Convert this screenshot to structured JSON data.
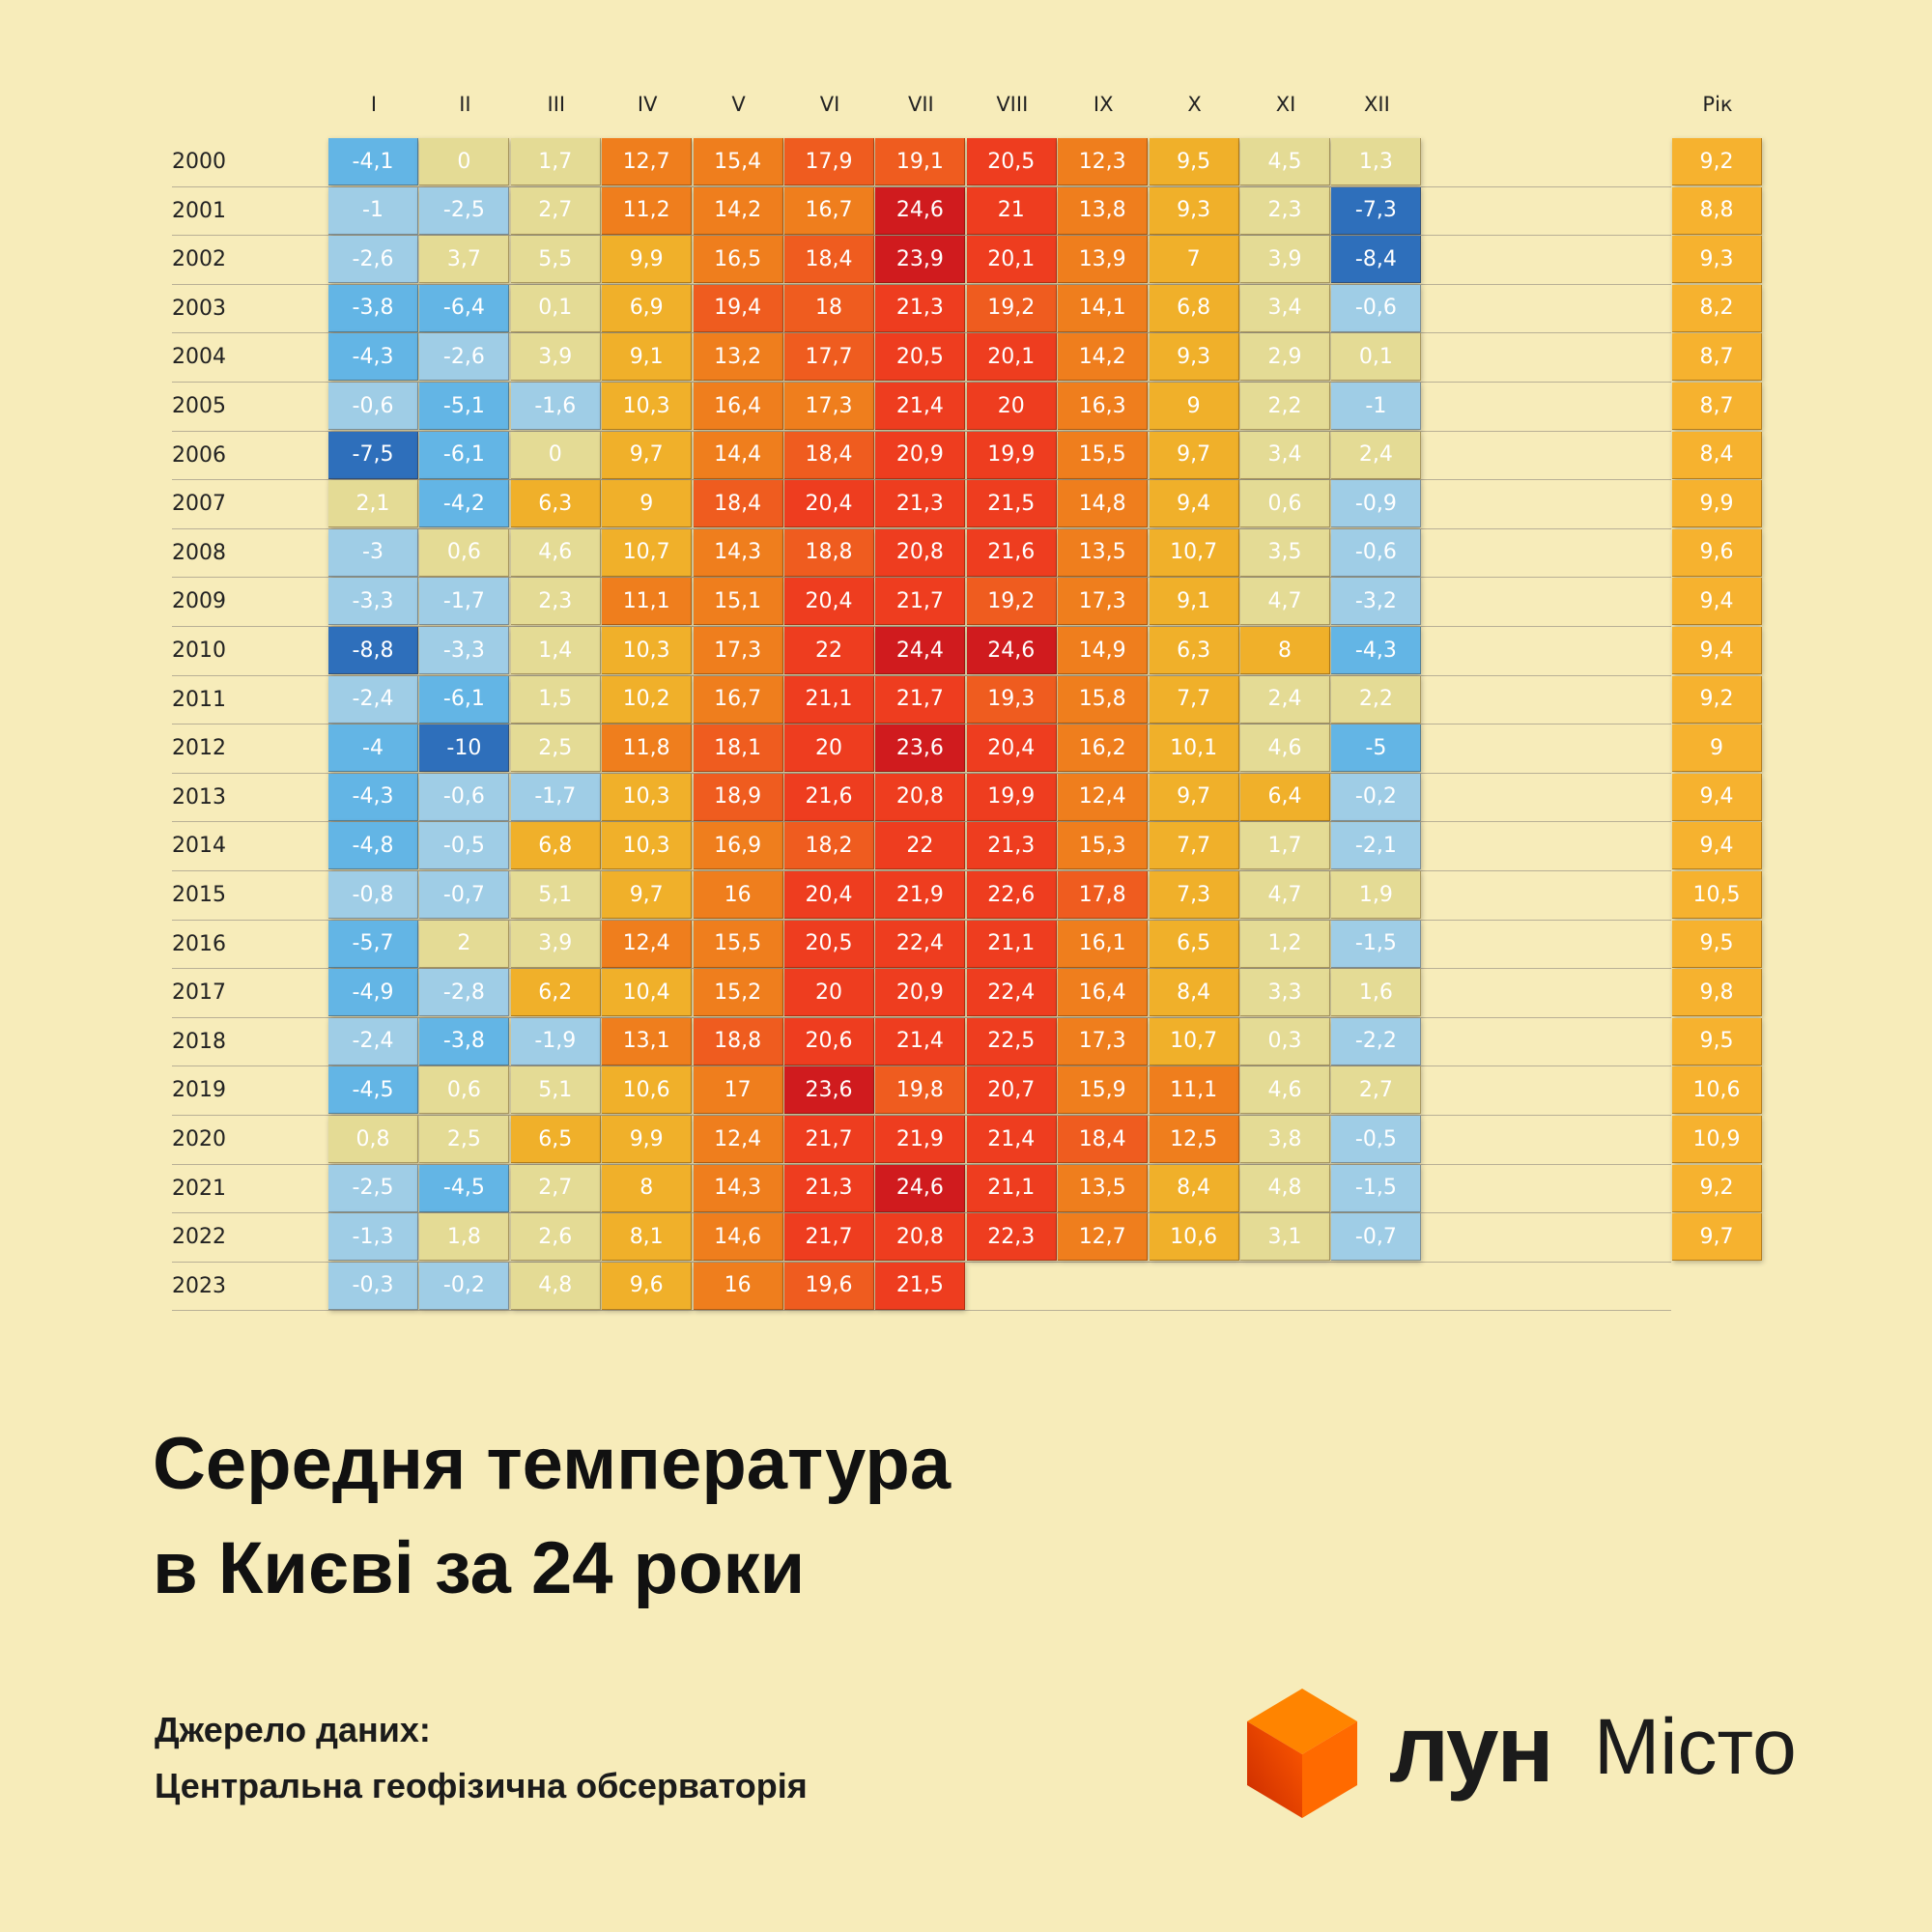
{
  "chart_data": {
    "type": "heatmap",
    "title": "Середня температура в Києві за 24 роки",
    "columns": [
      "I",
      "II",
      "III",
      "IV",
      "V",
      "VI",
      "VII",
      "VIII",
      "IX",
      "X",
      "XI",
      "XII"
    ],
    "annual_label": "Рік",
    "rows": [
      {
        "year": "2000",
        "months": [
          -4.1,
          0,
          1.7,
          12.7,
          15.4,
          17.9,
          19.1,
          20.5,
          12.3,
          9.5,
          4.5,
          1.3
        ],
        "annual": 9.2
      },
      {
        "year": "2001",
        "months": [
          -1,
          -2.5,
          2.7,
          11.2,
          14.2,
          16.7,
          24.6,
          21,
          13.8,
          9.3,
          2.3,
          -7.3
        ],
        "annual": 8.8
      },
      {
        "year": "2002",
        "months": [
          -2.6,
          3.7,
          5.5,
          9.9,
          16.5,
          18.4,
          23.9,
          20.1,
          13.9,
          7,
          3.9,
          -8.4
        ],
        "annual": 9.3
      },
      {
        "year": "2003",
        "months": [
          -3.8,
          -6.4,
          0.1,
          6.9,
          19.4,
          18,
          21.3,
          19.2,
          14.1,
          6.8,
          3.4,
          -0.6
        ],
        "annual": 8.2
      },
      {
        "year": "2004",
        "months": [
          -4.3,
          -2.6,
          3.9,
          9.1,
          13.2,
          17.7,
          20.5,
          20.1,
          14.2,
          9.3,
          2.9,
          0.1
        ],
        "annual": 8.7
      },
      {
        "year": "2005",
        "months": [
          -0.6,
          -5.1,
          -1.6,
          10.3,
          16.4,
          17.3,
          21.4,
          20,
          16.3,
          9,
          2.2,
          -1
        ],
        "annual": 8.7
      },
      {
        "year": "2006",
        "months": [
          -7.5,
          -6.1,
          0,
          9.7,
          14.4,
          18.4,
          20.9,
          19.9,
          15.5,
          9.7,
          3.4,
          2.4
        ],
        "annual": 8.4
      },
      {
        "year": "2007",
        "months": [
          2.1,
          -4.2,
          6.3,
          9,
          18.4,
          20.4,
          21.3,
          21.5,
          14.8,
          9.4,
          0.6,
          -0.9
        ],
        "annual": 9.9
      },
      {
        "year": "2008",
        "months": [
          -3,
          0.6,
          4.6,
          10.7,
          14.3,
          18.8,
          20.8,
          21.6,
          13.5,
          10.7,
          3.5,
          -0.6
        ],
        "annual": 9.6
      },
      {
        "year": "2009",
        "months": [
          -3.3,
          -1.7,
          2.3,
          11.1,
          15.1,
          20.4,
          21.7,
          19.2,
          17.3,
          9.1,
          4.7,
          -3.2
        ],
        "annual": 9.4
      },
      {
        "year": "2010",
        "months": [
          -8.8,
          -3.3,
          1.4,
          10.3,
          17.3,
          22,
          24.4,
          24.6,
          14.9,
          6.3,
          8,
          -4.3
        ],
        "annual": 9.4
      },
      {
        "year": "2011",
        "months": [
          -2.4,
          -6.1,
          1.5,
          10.2,
          16.7,
          21.1,
          21.7,
          19.3,
          15.8,
          7.7,
          2.4,
          2.2
        ],
        "annual": 9.2
      },
      {
        "year": "2012",
        "months": [
          -4,
          -10,
          2.5,
          11.8,
          18.1,
          20,
          23.6,
          20.4,
          16.2,
          10.1,
          4.6,
          -5
        ],
        "annual": 9
      },
      {
        "year": "2013",
        "months": [
          -4.3,
          -0.6,
          -1.7,
          10.3,
          18.9,
          21.6,
          20.8,
          19.9,
          12.4,
          9.7,
          6.4,
          -0.2
        ],
        "annual": 9.4
      },
      {
        "year": "2014",
        "months": [
          -4.8,
          -0.5,
          6.8,
          10.3,
          16.9,
          18.2,
          22,
          21.3,
          15.3,
          7.7,
          1.7,
          -2.1
        ],
        "annual": 9.4
      },
      {
        "year": "2015",
        "months": [
          -0.8,
          -0.7,
          5.1,
          9.7,
          16,
          20.4,
          21.9,
          22.6,
          17.8,
          7.3,
          4.7,
          1.9
        ],
        "annual": 10.5
      },
      {
        "year": "2016",
        "months": [
          -5.7,
          2,
          3.9,
          12.4,
          15.5,
          20.5,
          22.4,
          21.1,
          16.1,
          6.5,
          1.2,
          -1.5
        ],
        "annual": 9.5
      },
      {
        "year": "2017",
        "months": [
          -4.9,
          -2.8,
          6.2,
          10.4,
          15.2,
          20,
          20.9,
          22.4,
          16.4,
          8.4,
          3.3,
          1.6
        ],
        "annual": 9.8
      },
      {
        "year": "2018",
        "months": [
          -2.4,
          -3.8,
          -1.9,
          13.1,
          18.8,
          20.6,
          21.4,
          22.5,
          17.3,
          10.7,
          0.3,
          -2.2
        ],
        "annual": 9.5
      },
      {
        "year": "2019",
        "months": [
          -4.5,
          0.6,
          5.1,
          10.6,
          17,
          23.6,
          19.8,
          20.7,
          15.9,
          11.1,
          4.6,
          2.7
        ],
        "annual": 10.6
      },
      {
        "year": "2020",
        "months": [
          0.8,
          2.5,
          6.5,
          9.9,
          12.4,
          21.7,
          21.9,
          21.4,
          18.4,
          12.5,
          3.8,
          -0.5
        ],
        "annual": 10.9
      },
      {
        "year": "2021",
        "months": [
          -2.5,
          -4.5,
          2.7,
          8,
          14.3,
          21.3,
          24.6,
          21.1,
          13.5,
          8.4,
          4.8,
          -1.5
        ],
        "annual": 9.2
      },
      {
        "year": "2022",
        "months": [
          -1.3,
          1.8,
          2.6,
          8.1,
          14.6,
          21.7,
          20.8,
          22.3,
          12.7,
          10.6,
          3.1,
          -0.7
        ],
        "annual": 9.7
      },
      {
        "year": "2023",
        "months": [
          -0.3,
          -0.2,
          4.8,
          9.6,
          16,
          19.6,
          21.5
        ],
        "annual": null
      }
    ],
    "palette": {
      "dark_blue": "#2e6fbb",
      "mid_blue": "#63b5e5",
      "light_blue": "#9fcde6",
      "beige": "#e4db95",
      "amber": "#f0b02a",
      "orange": "#ef7e1d",
      "deep_orange": "#ef5c1f",
      "red": "#ee3d1f",
      "dark_red": "#d01b1e",
      "annual": "#f6b22f"
    }
  },
  "title": {
    "line1": "Середня температура",
    "line2": "в Києві за 24 роки"
  },
  "source": {
    "label": "Джерело даних:",
    "value": "Центральна геофізична обсерваторія"
  },
  "logo": {
    "brand": "лун",
    "product": "Місто",
    "cube_colors": [
      "#ff8a00",
      "#e23a00",
      "#ff6a00"
    ]
  }
}
